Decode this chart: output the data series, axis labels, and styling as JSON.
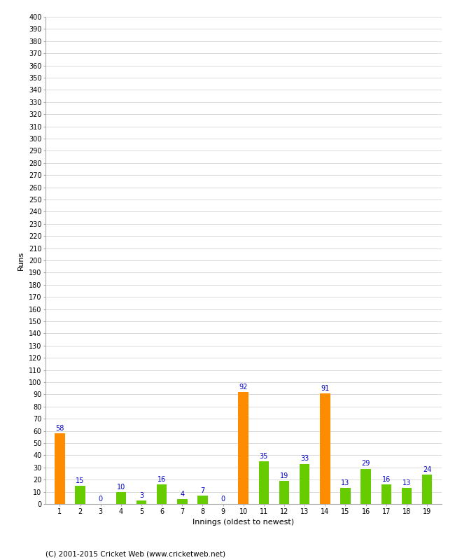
{
  "innings": [
    1,
    2,
    3,
    4,
    5,
    6,
    7,
    8,
    9,
    10,
    11,
    12,
    13,
    14,
    15,
    16,
    17,
    18,
    19
  ],
  "runs": [
    58,
    15,
    0,
    10,
    3,
    16,
    4,
    7,
    0,
    92,
    35,
    19,
    33,
    91,
    13,
    29,
    16,
    13,
    24
  ],
  "colors": [
    "#FF8C00",
    "#66CC00",
    "#66CC00",
    "#66CC00",
    "#66CC00",
    "#66CC00",
    "#66CC00",
    "#66CC00",
    "#66CC00",
    "#FF8C00",
    "#66CC00",
    "#66CC00",
    "#66CC00",
    "#FF8C00",
    "#66CC00",
    "#66CC00",
    "#66CC00",
    "#66CC00",
    "#66CC00"
  ],
  "xlabel": "Innings (oldest to newest)",
  "ylabel": "Runs",
  "ylim": [
    0,
    400
  ],
  "bar_labels_color": "#0000CC",
  "bar_labels_fontsize": 7,
  "xlabel_fontsize": 8,
  "ylabel_fontsize": 8,
  "tick_fontsize": 7,
  "copyright": "(C) 2001-2015 Cricket Web (www.cricketweb.net)",
  "copyright_fontsize": 7.5,
  "background_color": "#FFFFFF",
  "grid_color": "#CCCCCC"
}
